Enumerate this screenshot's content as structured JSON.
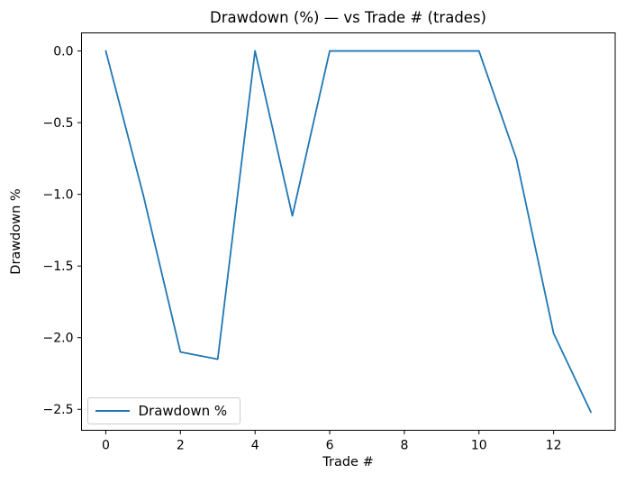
{
  "figure": {
    "background_color": "#ffffff",
    "frame_color": "#000000",
    "accent_color": "#1f77b4"
  },
  "chart_data": {
    "type": "line",
    "title": "Drawdown (%) — vs Trade # (trades)",
    "xlabel": "Trade #",
    "ylabel": "Drawdown %",
    "x": [
      0,
      1,
      2,
      3,
      4,
      5,
      6,
      7,
      8,
      9,
      10,
      11,
      12,
      13
    ],
    "series": [
      {
        "name": "Drawdown %",
        "color": "#1f77b4",
        "values": [
          0.0,
          -1.0,
          -2.1,
          -2.15,
          0.0,
          -1.15,
          0.0,
          0.0,
          0.0,
          0.0,
          0.0,
          -0.75,
          -1.97,
          -2.52
        ]
      }
    ],
    "xticks": [
      0,
      2,
      4,
      6,
      8,
      10,
      12
    ],
    "yticks": [
      0.0,
      -0.5,
      -1.0,
      -1.5,
      -2.0,
      -2.5
    ],
    "xlim": [
      -0.65,
      13.65
    ],
    "ylim": [
      -2.646,
      0.126
    ],
    "grid": false,
    "legend": {
      "label": "Drawdown %",
      "position": "lower left"
    }
  }
}
